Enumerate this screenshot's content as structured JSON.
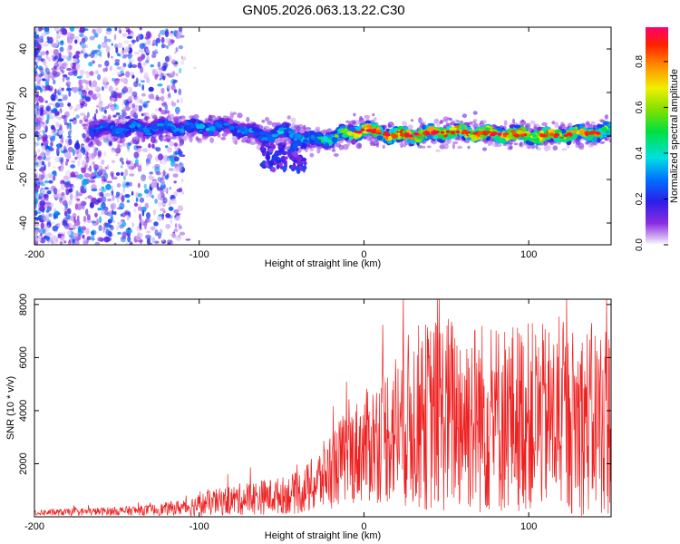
{
  "title": "GN05.2026.063.13.22.C30",
  "chart_data": [
    {
      "type": "heatmap",
      "xlabel": "Height of straight line (km)",
      "ylabel": "Frequency (Hz)",
      "xlim": [
        -200,
        150
      ],
      "ylim": [
        -50,
        50
      ],
      "xticks": [
        "-200",
        "-100",
        "0",
        "100"
      ],
      "xtick_values": [
        -200,
        -100,
        0,
        100
      ],
      "yticks": [
        "-40",
        "-20",
        "0",
        "20",
        "40"
      ],
      "ytick_values": [
        -40,
        -20,
        0,
        20,
        40
      ],
      "colorbar": {
        "label": "Normalized spectral amplitude",
        "range": [
          0,
          0.95
        ],
        "ticks": [
          "0.0",
          "0.2",
          "0.4",
          "0.6",
          "0.8"
        ],
        "tick_values": [
          0.0,
          0.2,
          0.4,
          0.6,
          0.8
        ]
      },
      "ridge": {
        "x": [
          -200,
          -160,
          -120,
          -100,
          -80,
          -60,
          -45,
          -35,
          -20,
          0,
          20,
          50,
          80,
          110,
          150
        ],
        "y": [
          3,
          3,
          4,
          4,
          4,
          0,
          2,
          -2,
          -1,
          3,
          0,
          2,
          1,
          0,
          2
        ],
        "peak_amplitude": [
          0.15,
          0.3,
          0.35,
          0.35,
          0.3,
          0.35,
          0.4,
          0.4,
          0.5,
          0.8,
          0.85,
          0.85,
          0.85,
          0.85,
          0.7
        ]
      },
      "scatter_region": {
        "x_range": [
          -200,
          -110
        ],
        "y_range": [
          -50,
          50
        ],
        "amplitude": [
          0.02,
          0.35
        ]
      }
    },
    {
      "type": "line",
      "xlabel": "Height of straight line (km)",
      "ylabel": "SNR (10 * v/v)",
      "xlim": [
        -200,
        150
      ],
      "ylim": [
        0,
        8200
      ],
      "xticks": [
        "-200",
        "-100",
        "0",
        "100"
      ],
      "xtick_values": [
        -200,
        -100,
        0,
        100
      ],
      "yticks": [
        "2000",
        "4000",
        "6000",
        "8000"
      ],
      "ytick_values": [
        2000,
        4000,
        6000,
        8000
      ],
      "series": [
        {
          "name": "SNR",
          "color": "#ee2020",
          "envelope_x": [
            -200,
            -160,
            -130,
            -110,
            -100,
            -90,
            -70,
            -50,
            -40,
            -30,
            -20,
            -10,
            0,
            10,
            20,
            30,
            50,
            80,
            100,
            120,
            150
          ],
          "envelope_mean": [
            150,
            200,
            250,
            350,
            450,
            550,
            700,
            800,
            900,
            1200,
            1800,
            2300,
            2600,
            3000,
            3400,
            3700,
            3900,
            3700,
            3800,
            3600,
            3700
          ],
          "envelope_amp": [
            120,
            150,
            200,
            300,
            450,
            500,
            650,
            700,
            800,
            1100,
            1500,
            1800,
            2100,
            2500,
            3000,
            3500,
            3800,
            3700,
            3600,
            3500,
            3800
          ]
        }
      ]
    }
  ]
}
